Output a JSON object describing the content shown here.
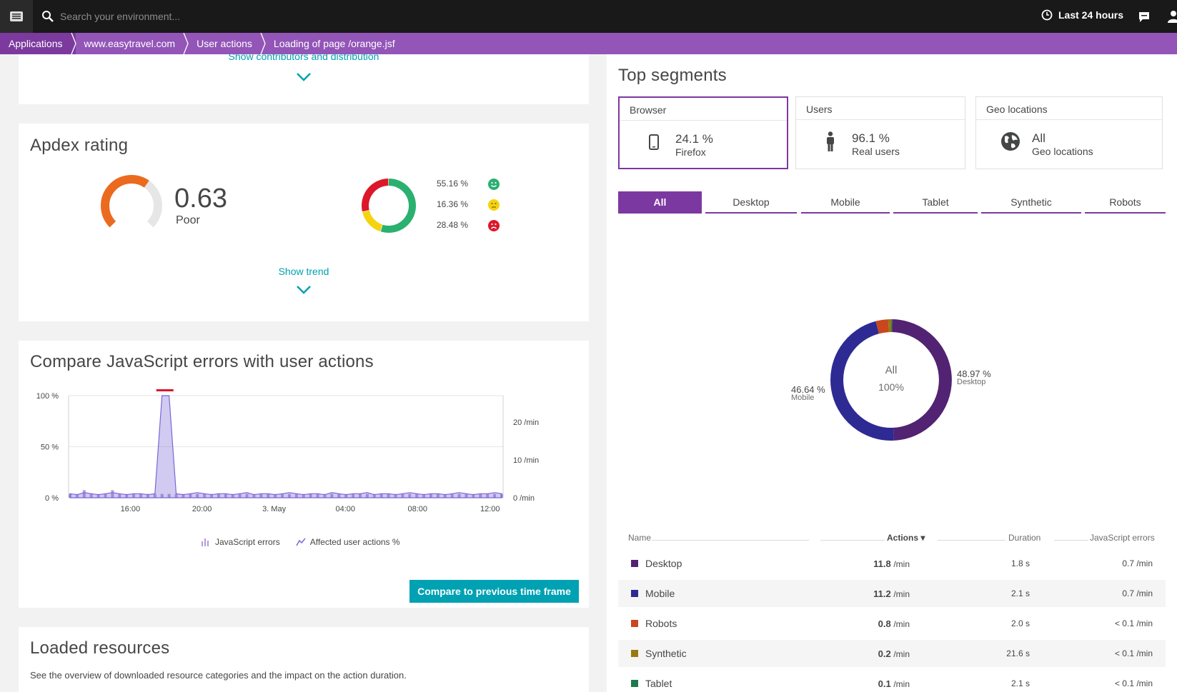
{
  "topbar": {
    "search_placeholder": "Search your environment...",
    "timeframe_label": "Last 24 hours"
  },
  "breadcrumb": [
    {
      "label": "Applications"
    },
    {
      "label": "www.easytravel.com"
    },
    {
      "label": "User actions"
    },
    {
      "label": "Loading of page /orange.jsf"
    }
  ],
  "contributors": {
    "link": "Show contributors and distribution"
  },
  "apdex": {
    "title": "Apdex rating",
    "score": "0.63",
    "rating": "Poor",
    "gauge_fraction": 0.63,
    "breakdown": [
      {
        "label": "55.16 %",
        "value": 55.16,
        "category": "satisfied",
        "color": "#2ab06f"
      },
      {
        "label": "16.36 %",
        "value": 16.36,
        "category": "tolerating",
        "color": "#f5d30f"
      },
      {
        "label": "28.48 %",
        "value": 28.48,
        "category": "frustrated",
        "color": "#dc172a"
      }
    ],
    "trend_link": "Show trend"
  },
  "js_errors": {
    "title": "Compare JavaScript errors with user actions",
    "button": "Compare to previous time frame",
    "legend": [
      "JavaScript errors",
      "Affected user actions %"
    ]
  },
  "chart_data": {
    "type": "area",
    "title": "Compare JavaScript errors with user actions",
    "x_tick_labels": [
      "16:00",
      "20:00",
      "3. May",
      "04:00",
      "08:00",
      "12:00"
    ],
    "y_left_tick_labels": [
      "100 %",
      "50 %",
      "0 %"
    ],
    "y_left_range": [
      0,
      100
    ],
    "y_right_tick_labels": [
      "20",
      "10",
      "0"
    ],
    "y_right_unit": "/min",
    "y_right_range": [
      0,
      27
    ],
    "grid": true,
    "legend_position": "bottom",
    "series": [
      {
        "name": "JavaScript errors",
        "color": "#b39bdf",
        "values": [
          1,
          1,
          2,
          1,
          1,
          1,
          2,
          1,
          1,
          1,
          1,
          1,
          1,
          1,
          1,
          1,
          1,
          1,
          1,
          1,
          1,
          1,
          1,
          1,
          1,
          1,
          1,
          1,
          1,
          1,
          1,
          1,
          1,
          1,
          1,
          1,
          1,
          1,
          1,
          1,
          1,
          1,
          1,
          1,
          1,
          1,
          1,
          1,
          1,
          1,
          1,
          1,
          1,
          1,
          1,
          1,
          1,
          1,
          1,
          1,
          1,
          1
        ]
      },
      {
        "name": "Affected user actions %",
        "color": "#7c66d6",
        "values": [
          4,
          3,
          5,
          4,
          3,
          4,
          5,
          4,
          3,
          4,
          4,
          3,
          4,
          100,
          100,
          4,
          3,
          4,
          5,
          4,
          3,
          4,
          4,
          3,
          4,
          5,
          3,
          4,
          4,
          3,
          4,
          5,
          4,
          3,
          4,
          4,
          3,
          5,
          4,
          3,
          4,
          4,
          5,
          3,
          4,
          4,
          3,
          4,
          5,
          4,
          3,
          4,
          4,
          3,
          4,
          5,
          4,
          3,
          4,
          4,
          5,
          4
        ]
      }
    ]
  },
  "resources": {
    "title": "Loaded resources",
    "description": "See the overview of downloaded resource categories and the impact on the action duration."
  },
  "segments": {
    "title": "Top segments",
    "cards": [
      {
        "header": "Browser",
        "value": "24.1 %",
        "sub": "Firefox",
        "icon": "mobile-phone-icon"
      },
      {
        "header": "Users",
        "value": "96.1 %",
        "sub": "Real users",
        "icon": "person-icon"
      },
      {
        "header": "Geo locations",
        "value": "All",
        "sub": "Geo locations",
        "icon": "globe-icon"
      }
    ],
    "tabs": [
      "All",
      "Desktop",
      "Mobile",
      "Tablet",
      "Synthetic",
      "Robots"
    ],
    "donut": {
      "center_label": "All",
      "center_value": "100%",
      "left_label_value": "46.64 %",
      "left_label_name": "Mobile",
      "right_label_value": "48.97 %",
      "right_label_name": "Desktop",
      "slices": [
        {
          "name": "Desktop",
          "value": 48.97,
          "color": "#522273"
        },
        {
          "name": "Mobile",
          "value": 46.64,
          "color": "#2e2a93"
        },
        {
          "name": "Robots",
          "value": 3.3,
          "color": "#c9461e"
        },
        {
          "name": "Synthetic",
          "value": 0.8,
          "color": "#9a7a10"
        },
        {
          "name": "Tablet",
          "value": 0.3,
          "color": "#1d7a4b"
        }
      ]
    },
    "table": {
      "headers": {
        "name": "Name",
        "actions": "Actions ▾",
        "duration": "Duration",
        "js_errors": "JavaScript errors"
      },
      "rows": [
        {
          "name": "Desktop",
          "actions": "11.8",
          "actions_unit": "/min",
          "duration": "1.8 s",
          "js_errors": "0.7 /min",
          "color": "#522273"
        },
        {
          "name": "Mobile",
          "actions": "11.2",
          "actions_unit": "/min",
          "duration": "2.1 s",
          "js_errors": "0.7 /min",
          "color": "#2e2a93"
        },
        {
          "name": "Robots",
          "actions": "0.8",
          "actions_unit": "/min",
          "duration": "2.0 s",
          "js_errors": "< 0.1 /min",
          "color": "#c9461e"
        },
        {
          "name": "Synthetic",
          "actions": "0.2",
          "actions_unit": "/min",
          "duration": "21.6 s",
          "js_errors": "< 0.1 /min",
          "color": "#9a7a10"
        },
        {
          "name": "Tablet",
          "actions": "0.1",
          "actions_unit": "/min",
          "duration": "2.1 s",
          "js_errors": "< 0.1 /min",
          "color": "#1d7a4b"
        }
      ]
    }
  }
}
